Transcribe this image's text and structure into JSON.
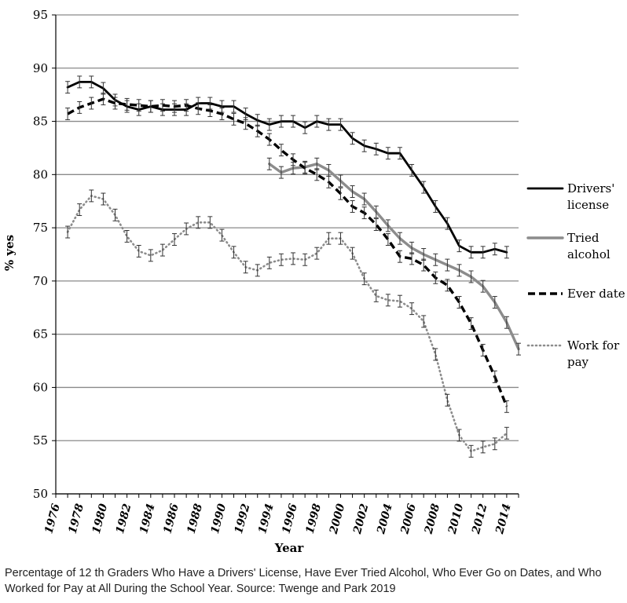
{
  "caption": "Percentage of 12 th Graders Who Have a Drivers' License, Have Ever Tried Alcohol, Who Ever Go on Dates, and Who Worked for Pay at All During the School Year. Source: Twenge and Park 2019",
  "chart_data": {
    "type": "line",
    "title": "",
    "xlabel": "Year",
    "ylabel": "% yes",
    "xlim": [
      1976,
      2015
    ],
    "ylim": [
      50,
      95
    ],
    "x_ticks": [
      "1976",
      "1978",
      "1980",
      "1982",
      "1984",
      "1986",
      "1988",
      "1990",
      "1992",
      "1994",
      "1996",
      "1998",
      "2000",
      "2002",
      "2004",
      "2006",
      "2008",
      "2010",
      "2012",
      "2014"
    ],
    "y_ticks": [
      50,
      55,
      60,
      65,
      70,
      75,
      80,
      85,
      90,
      95
    ],
    "grid": "horizontal",
    "legend_position": "right",
    "series": [
      {
        "name": "Drivers' license",
        "legend_lines": [
          "Drivers'",
          "license"
        ],
        "style": "solid",
        "color": "#000000",
        "x": [
          1977,
          1978,
          1979,
          1980,
          1981,
          1982,
          1983,
          1984,
          1985,
          1986,
          1987,
          1988,
          1989,
          1990,
          1991,
          1992,
          1993,
          1994,
          1995,
          1996,
          1997,
          1998,
          1999,
          2000,
          2001,
          2002,
          2003,
          2004,
          2005,
          2006,
          2007,
          2008,
          2009,
          2010,
          2011,
          2012,
          2013,
          2014
        ],
        "y": [
          88.2,
          88.7,
          88.7,
          88.1,
          87.0,
          86.4,
          86.1,
          86.4,
          86.1,
          86.1,
          86.1,
          86.7,
          86.7,
          86.4,
          86.4,
          85.7,
          85.1,
          84.7,
          85.0,
          85.0,
          84.4,
          85.0,
          84.7,
          84.7,
          83.4,
          82.7,
          82.4,
          82.0,
          82.0,
          80.4,
          78.8,
          77.0,
          75.4,
          73.3,
          72.7,
          72.7,
          73.0,
          72.7
        ]
      },
      {
        "name": "Tried alcohol",
        "legend_lines": [
          "Tried",
          "alcohol"
        ],
        "style": "solid",
        "color": "#8c8c8c",
        "x": [
          1994,
          1995,
          1996,
          1997,
          1998,
          1999,
          2000,
          2001,
          2002,
          2003,
          2004,
          2005,
          2006,
          2007,
          2008,
          2009,
          2010,
          2011,
          2012,
          2013,
          2014,
          2015
        ],
        "y": [
          81.0,
          80.2,
          80.6,
          80.7,
          81.0,
          80.4,
          79.4,
          78.4,
          77.7,
          76.5,
          75.2,
          74.0,
          73.1,
          72.5,
          72.0,
          71.5,
          71.0,
          70.4,
          69.5,
          68.0,
          66.1,
          63.6
        ]
      },
      {
        "name": "Ever date",
        "legend_lines": [
          "Ever date"
        ],
        "style": "dashed",
        "color": "#000000",
        "x": [
          1977,
          1978,
          1979,
          1980,
          1981,
          1982,
          1983,
          1984,
          1985,
          1986,
          1987,
          1988,
          1989,
          1990,
          1991,
          1992,
          1993,
          1994,
          1995,
          1996,
          1997,
          1998,
          1999,
          2000,
          2001,
          2002,
          2003,
          2004,
          2005,
          2006,
          2007,
          2008,
          2009,
          2010,
          2011,
          2012,
          2013,
          2014
        ],
        "y": [
          85.7,
          86.3,
          86.7,
          87.1,
          86.7,
          86.6,
          86.5,
          86.4,
          86.5,
          86.4,
          86.5,
          86.2,
          86.0,
          85.7,
          85.2,
          84.8,
          84.1,
          83.3,
          82.3,
          81.4,
          80.6,
          80.0,
          79.3,
          78.2,
          77.0,
          76.4,
          75.3,
          73.9,
          72.3,
          72.1,
          71.5,
          70.3,
          69.6,
          68.0,
          66.0,
          63.5,
          61.0,
          58.2
        ]
      },
      {
        "name": "Work for pay",
        "legend_lines": [
          "Work for",
          "pay"
        ],
        "style": "dotted",
        "color": "#8c8c8c",
        "x": [
          1977,
          1978,
          1979,
          1980,
          1981,
          1982,
          1983,
          1984,
          1985,
          1986,
          1987,
          1988,
          1989,
          1990,
          1991,
          1992,
          1993,
          1994,
          1995,
          1996,
          1997,
          1998,
          1999,
          2000,
          2001,
          2002,
          2003,
          2004,
          2005,
          2006,
          2007,
          2008,
          2009,
          2010,
          2011,
          2012,
          2013,
          2014
        ],
        "y": [
          74.6,
          76.7,
          78.0,
          77.7,
          76.2,
          74.2,
          72.8,
          72.4,
          72.9,
          73.9,
          74.9,
          75.5,
          75.5,
          74.3,
          72.7,
          71.3,
          71.0,
          71.7,
          72.0,
          72.1,
          72.0,
          72.6,
          74.0,
          74.0,
          72.6,
          70.2,
          68.6,
          68.2,
          68.1,
          67.4,
          66.2,
          63.1,
          58.8,
          55.5,
          54.0,
          54.4,
          54.7,
          55.7
        ]
      }
    ]
  }
}
